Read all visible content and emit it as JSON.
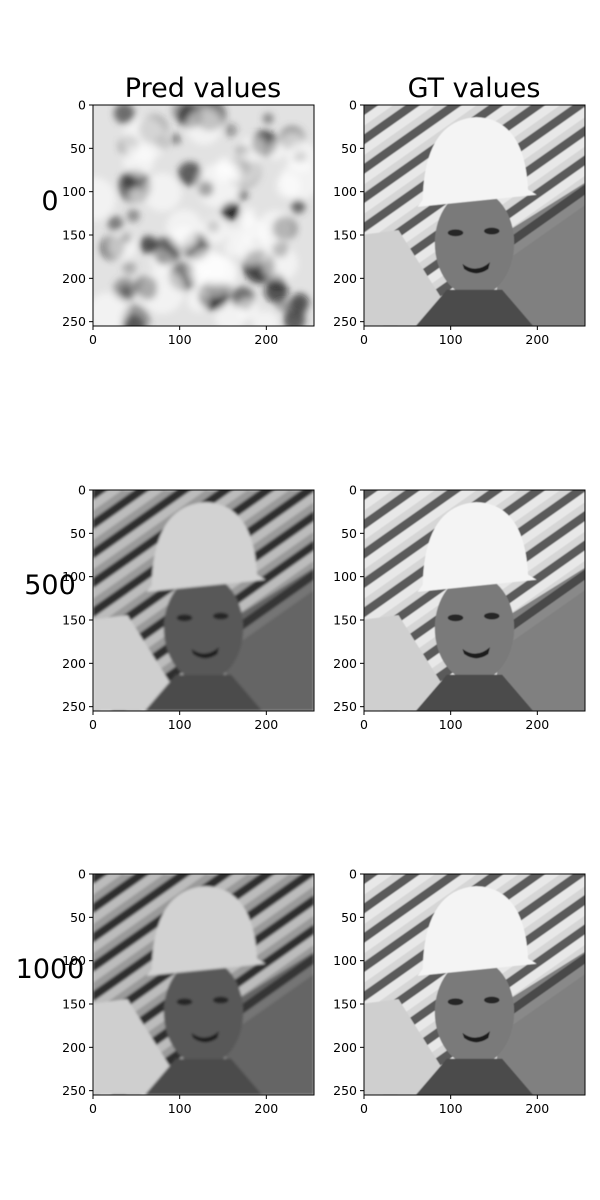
{
  "columns": [
    {
      "title": "Pred values"
    },
    {
      "title": "GT values"
    }
  ],
  "rows": [
    {
      "label": "0"
    },
    {
      "label": "500"
    },
    {
      "label": "1000"
    }
  ],
  "colors": {
    "background": "#ffffff",
    "axis": "#000000"
  },
  "chart_data": [
    {
      "type": "heatmap",
      "row_label": "0",
      "column": "Pred values",
      "content": "noise",
      "xlim": [
        0,
        255
      ],
      "ylim": [
        255,
        0
      ],
      "xticks": [
        0,
        100,
        200
      ],
      "yticks": [
        0,
        50,
        100,
        150,
        200,
        250
      ],
      "colormap": "gray"
    },
    {
      "type": "heatmap",
      "row_label": "0",
      "column": "GT values",
      "content": "worker-face",
      "xlim": [
        0,
        255
      ],
      "ylim": [
        255,
        0
      ],
      "xticks": [
        0,
        100,
        200
      ],
      "yticks": [
        0,
        50,
        100,
        150,
        200,
        250
      ],
      "colormap": "gray"
    },
    {
      "type": "heatmap",
      "row_label": "500",
      "column": "Pred values",
      "content": "worker-face-predicted",
      "xlim": [
        0,
        255
      ],
      "ylim": [
        255,
        0
      ],
      "xticks": [
        0,
        100,
        200
      ],
      "yticks": [
        0,
        50,
        100,
        150,
        200,
        250
      ],
      "colormap": "gray"
    },
    {
      "type": "heatmap",
      "row_label": "500",
      "column": "GT values",
      "content": "worker-face",
      "xlim": [
        0,
        255
      ],
      "ylim": [
        255,
        0
      ],
      "xticks": [
        0,
        100,
        200
      ],
      "yticks": [
        0,
        50,
        100,
        150,
        200,
        250
      ],
      "colormap": "gray"
    },
    {
      "type": "heatmap",
      "row_label": "1000",
      "column": "Pred values",
      "content": "worker-face-predicted",
      "xlim": [
        0,
        255
      ],
      "ylim": [
        255,
        0
      ],
      "xticks": [
        0,
        100,
        200
      ],
      "yticks": [
        0,
        50,
        100,
        150,
        200,
        250
      ],
      "colormap": "gray"
    },
    {
      "type": "heatmap",
      "row_label": "1000",
      "column": "GT values",
      "content": "worker-face",
      "xlim": [
        0,
        255
      ],
      "ylim": [
        255,
        0
      ],
      "xticks": [
        0,
        100,
        200
      ],
      "yticks": [
        0,
        50,
        100,
        150,
        200,
        250
      ],
      "colormap": "gray"
    }
  ]
}
